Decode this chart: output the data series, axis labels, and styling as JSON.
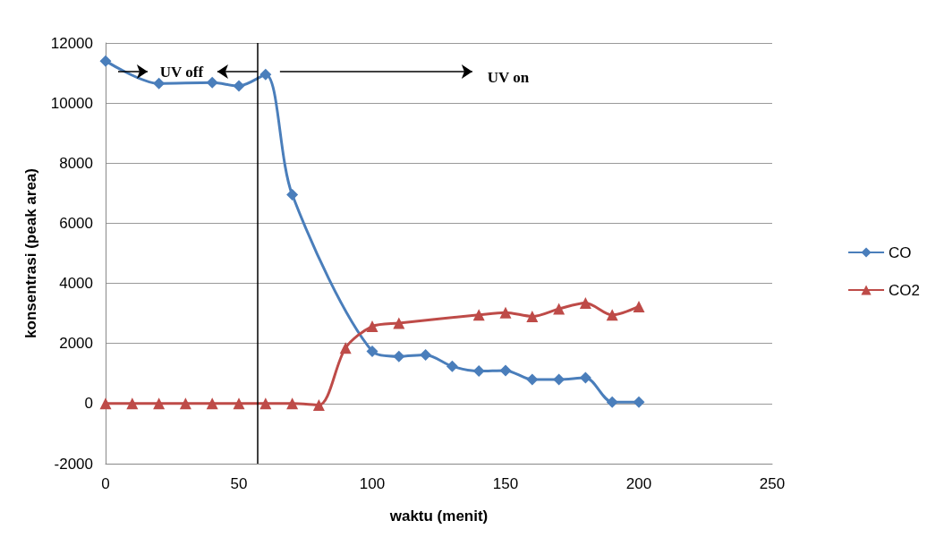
{
  "chart_data": {
    "type": "line",
    "xlabel": "waktu (menit)",
    "ylabel": "konsentrasi (peak area)",
    "series": [
      {
        "name": "CO",
        "color": "#4a7ebb",
        "marker": "diamond",
        "x": [
          0,
          20,
          40,
          50,
          60,
          70,
          100,
          110,
          120,
          130,
          140,
          150,
          160,
          170,
          180,
          190,
          200
        ],
        "values": [
          11400,
          10650,
          10680,
          10570,
          10950,
          6950,
          1740,
          1570,
          1620,
          1240,
          1080,
          1100,
          800,
          800,
          860,
          50,
          50
        ]
      },
      {
        "name": "CO2",
        "color": "#be4b48",
        "marker": "triangle",
        "x": [
          0,
          10,
          20,
          30,
          40,
          50,
          60,
          70,
          80,
          90,
          100,
          110,
          140,
          150,
          160,
          170,
          180,
          190,
          200
        ],
        "values": [
          0,
          0,
          0,
          0,
          0,
          0,
          0,
          0,
          -50,
          1850,
          2570,
          2680,
          2950,
          3030,
          2900,
          3150,
          3350,
          2950,
          3230
        ]
      }
    ],
    "xlim": [
      0,
      250
    ],
    "xticks": [
      0,
      50,
      100,
      150,
      200,
      250
    ],
    "ylim": [
      -2000,
      12000
    ],
    "yticks": [
      -2000,
      0,
      2000,
      4000,
      6000,
      8000,
      10000,
      12000
    ],
    "grid": "y",
    "legend": "right",
    "ref_lines": [
      {
        "axis": "x",
        "value": 57,
        "color": "#000000"
      }
    ],
    "annotations": [
      "UV off",
      "UV on"
    ]
  }
}
